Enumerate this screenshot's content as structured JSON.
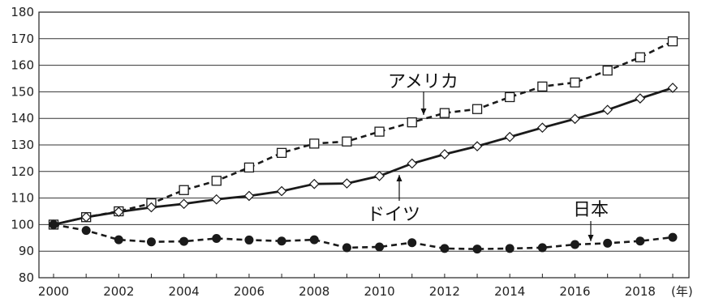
{
  "chart_data": {
    "type": "line",
    "title": "",
    "xlabel": "",
    "ylabel": "",
    "x_unit": "(年)",
    "xlim": [
      2000,
      2019
    ],
    "ylim": [
      80,
      180
    ],
    "x_ticks": [
      "2000",
      "2002",
      "2004",
      "2006",
      "2008",
      "2010",
      "2012",
      "2014",
      "2016",
      "2018"
    ],
    "y_ticks": [
      "80",
      "90",
      "100",
      "110",
      "120",
      "130",
      "140",
      "150",
      "160",
      "170",
      "180"
    ],
    "grid": "horizontal",
    "legend": "none",
    "x": [
      2000,
      2001,
      2002,
      2003,
      2004,
      2005,
      2006,
      2007,
      2008,
      2009,
      2010,
      2011,
      2012,
      2013,
      2014,
      2015,
      2016,
      2017,
      2018,
      2019
    ],
    "series": [
      {
        "name": "アメリカ",
        "marker": "square",
        "line_style": "dashed",
        "values": [
          100,
          102.8,
          105,
          108,
          113,
          116.5,
          121.5,
          127,
          130.5,
          131.3,
          135,
          138.5,
          142,
          143.5,
          148,
          152,
          153.5,
          158,
          163,
          169
        ]
      },
      {
        "name": "ドイツ",
        "marker": "diamond",
        "line_style": "solid",
        "values": [
          100,
          102.8,
          104.8,
          106.5,
          107.8,
          109.5,
          110.8,
          112.6,
          115.3,
          115.5,
          118.3,
          123,
          126.5,
          129.5,
          133,
          136.5,
          139.8,
          143.2,
          147.5,
          151.5
        ]
      },
      {
        "name": "日本",
        "marker": "circle",
        "line_style": "dashed",
        "values": [
          100,
          97.8,
          94.3,
          93.5,
          93.7,
          94.8,
          94.2,
          93.8,
          94.3,
          91.3,
          91.6,
          93.2,
          91,
          90.8,
          91,
          91.3,
          92.5,
          93,
          93.8,
          95.2
        ]
      }
    ]
  }
}
